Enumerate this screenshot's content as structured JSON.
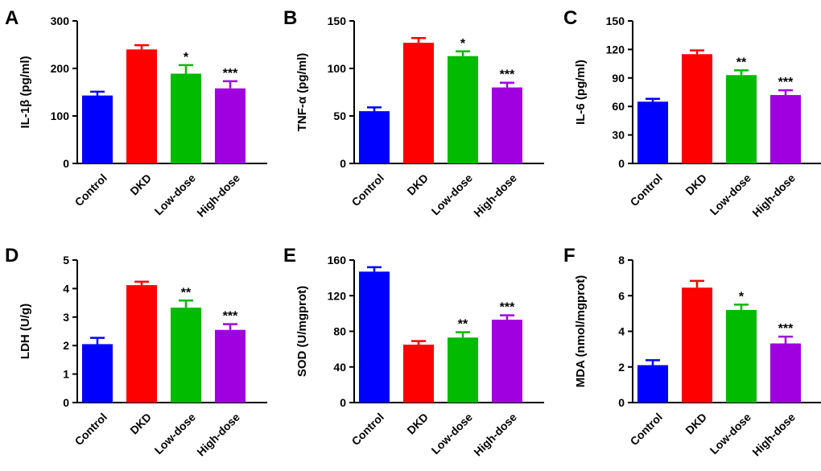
{
  "colors": [
    "#0000ff",
    "#ff0000",
    "#00bb00",
    "#a000e0"
  ],
  "chart_data": [
    {
      "type": "bar",
      "panel": "A",
      "ylabel": "IL-1β (pg/ml)",
      "categories": [
        "Control",
        "DKD",
        "Low-dose",
        "High-dose"
      ],
      "values": [
        143,
        240,
        189,
        158
      ],
      "errors": [
        8,
        9,
        18,
        15
      ],
      "significance": [
        "",
        "",
        "*",
        "***"
      ],
      "ylim": [
        0,
        300
      ],
      "yticks": [
        0,
        100,
        200,
        300
      ]
    },
    {
      "type": "bar",
      "panel": "B",
      "ylabel": "TNF-α (pg/ml)",
      "categories": [
        "Control",
        "DKD",
        "Low-dose",
        "High-dose"
      ],
      "values": [
        55,
        127,
        113,
        80
      ],
      "errors": [
        4,
        5,
        5,
        5
      ],
      "significance": [
        "",
        "",
        "*",
        "***"
      ],
      "ylim": [
        0,
        150
      ],
      "yticks": [
        0,
        50,
        100,
        150
      ]
    },
    {
      "type": "bar",
      "panel": "C",
      "ylabel": "IL-6 (pg/ml)",
      "categories": [
        "Control",
        "DKD",
        "Low-dose",
        "High-dose"
      ],
      "values": [
        65,
        115,
        93,
        72
      ],
      "errors": [
        3,
        4,
        5,
        5
      ],
      "significance": [
        "",
        "",
        "**",
        "***"
      ],
      "ylim": [
        0,
        150
      ],
      "yticks": [
        0,
        30,
        60,
        90,
        120,
        150
      ]
    },
    {
      "type": "bar",
      "panel": "D",
      "ylabel": "LDH (U/g)",
      "categories": [
        "Control",
        "DKD",
        "Low-dose",
        "High-dose"
      ],
      "values": [
        2.05,
        4.12,
        3.33,
        2.55
      ],
      "errors": [
        0.22,
        0.12,
        0.25,
        0.2
      ],
      "significance": [
        "",
        "",
        "**",
        "***"
      ],
      "ylim": [
        0,
        5
      ],
      "yticks": [
        0,
        1,
        2,
        3,
        4,
        5
      ]
    },
    {
      "type": "bar",
      "panel": "E",
      "ylabel": "SOD (U/mgprot)",
      "categories": [
        "Control",
        "DKD",
        "Low-dose",
        "High-dose"
      ],
      "values": [
        147,
        65,
        73,
        93
      ],
      "errors": [
        5,
        4,
        6,
        5
      ],
      "significance": [
        "",
        "",
        "**",
        "***"
      ],
      "ylim": [
        0,
        160
      ],
      "yticks": [
        0,
        40,
        80,
        120,
        160
      ]
    },
    {
      "type": "bar",
      "panel": "F",
      "ylabel": "MDA (nmol/mgprot)",
      "categories": [
        "Control",
        "DKD",
        "Low-dose",
        "High-dose"
      ],
      "values": [
        2.1,
        6.45,
        5.2,
        3.32
      ],
      "errors": [
        0.28,
        0.38,
        0.3,
        0.38
      ],
      "significance": [
        "",
        "",
        "*",
        "***"
      ],
      "ylim": [
        0,
        8
      ],
      "yticks": [
        0,
        2,
        4,
        6,
        8
      ]
    }
  ]
}
